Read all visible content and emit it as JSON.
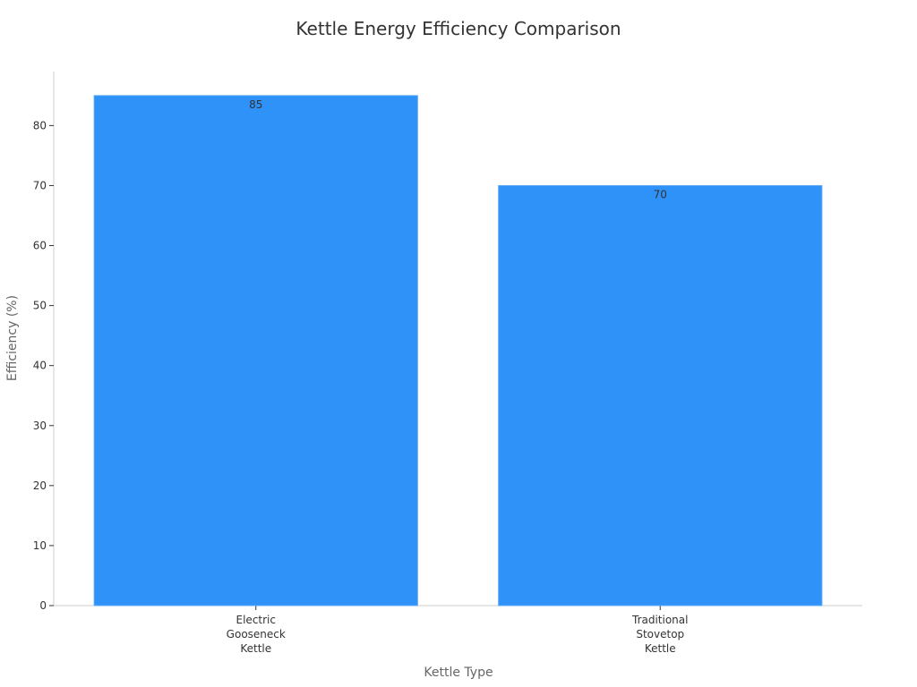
{
  "chart_data": {
    "type": "bar",
    "title": "Kettle Energy Efficiency Comparison",
    "categories": [
      [
        "Electric",
        "Gooseneck",
        "Kettle"
      ],
      [
        "Traditional",
        "Stovetop",
        "Kettle"
      ]
    ],
    "values": [
      85,
      70
    ],
    "data_labels": [
      "85",
      "70"
    ],
    "xlabel": "Kettle Type",
    "ylabel": "Efficiency (%)",
    "ylim": [
      0,
      89
    ],
    "yticks": [
      0,
      10,
      20,
      30,
      40,
      50,
      60,
      70,
      80
    ],
    "bar_color": "#2e92f8",
    "bar_edge_color": "#5ea9f5",
    "axis_color": "#cccccc",
    "grid": false,
    "legend": "none"
  }
}
